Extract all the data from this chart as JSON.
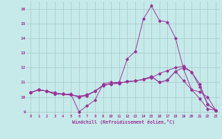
{
  "xlabel": "Windchill (Refroidissement éolien,°C)",
  "background_color": "#c6eaea",
  "line_color": "#993399",
  "grid_color": "#aacccc",
  "x_values": [
    0,
    1,
    2,
    3,
    4,
    5,
    6,
    7,
    8,
    9,
    10,
    11,
    12,
    13,
    14,
    15,
    16,
    17,
    18,
    19,
    20,
    21,
    22,
    23
  ],
  "series": [
    [
      10.3,
      10.5,
      10.4,
      10.3,
      10.2,
      10.2,
      9.0,
      9.4,
      9.8,
      10.9,
      11.0,
      11.0,
      12.6,
      13.1,
      15.3,
      16.2,
      15.2,
      15.1,
      14.0,
      11.9,
      10.5,
      9.9,
      9.2,
      9.1
    ],
    [
      10.3,
      10.5,
      10.4,
      10.2,
      10.2,
      10.15,
      10.0,
      10.1,
      10.4,
      10.8,
      10.9,
      10.95,
      11.05,
      11.1,
      11.2,
      11.3,
      11.6,
      11.8,
      12.0,
      12.1,
      11.7,
      10.7,
      9.5,
      9.1
    ],
    [
      10.3,
      10.5,
      10.4,
      10.2,
      10.2,
      10.15,
      10.05,
      10.15,
      10.4,
      10.8,
      10.9,
      10.95,
      11.05,
      11.1,
      11.2,
      11.4,
      11.0,
      11.15,
      11.75,
      11.1,
      10.5,
      10.35,
      10.0,
      9.1
    ],
    [
      10.3,
      10.5,
      10.4,
      10.2,
      10.2,
      10.15,
      10.05,
      10.15,
      10.4,
      10.8,
      10.9,
      10.95,
      11.05,
      11.1,
      11.2,
      11.4,
      11.0,
      11.15,
      11.75,
      12.0,
      11.7,
      10.9,
      9.5,
      9.1
    ]
  ],
  "ylim": [
    8.85,
    16.5
  ],
  "xlim": [
    -0.5,
    23.5
  ],
  "yticks": [
    9,
    10,
    11,
    12,
    13,
    14,
    15,
    16
  ],
  "xticks": [
    0,
    1,
    2,
    3,
    4,
    5,
    6,
    7,
    8,
    9,
    10,
    11,
    12,
    13,
    14,
    15,
    16,
    17,
    18,
    19,
    20,
    21,
    22,
    23
  ]
}
